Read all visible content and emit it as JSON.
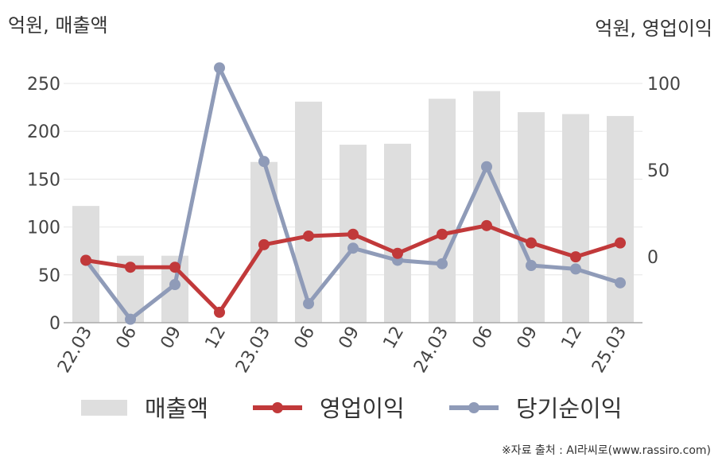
{
  "chart_data": {
    "type": "bar+line",
    "left_unit_label": "억원, 매출액",
    "right_unit_label": "억원, 영업이익",
    "categories": [
      "22.03",
      "06",
      "09",
      "12",
      "23.03",
      "06",
      "09",
      "12",
      "24.03",
      "06",
      "09",
      "12",
      "25.03"
    ],
    "left_axis": {
      "ticks": [
        "250",
        "200",
        "150",
        "100",
        "50",
        "0"
      ],
      "ylim": [
        0,
        250
      ]
    },
    "right_axis": {
      "ticks": [
        "100",
        "50",
        "0"
      ],
      "ylim": [
        -38,
        100
      ]
    },
    "series": [
      {
        "name": "매출액",
        "type": "bar",
        "axis": "left",
        "color": "#dedede",
        "values": [
          122,
          70,
          70,
          null,
          168,
          231,
          186,
          187,
          234,
          242,
          220,
          218,
          216
        ]
      },
      {
        "name": "영업이익",
        "type": "line",
        "axis": "right",
        "color": "#c1393a",
        "values": [
          -2,
          -6,
          -6,
          -32,
          7,
          12,
          13,
          2,
          13,
          18,
          8,
          0,
          8
        ]
      },
      {
        "name": "당기순이익",
        "type": "line",
        "axis": "right",
        "color": "#8f9bb8",
        "values": [
          -2,
          -36,
          -16,
          109,
          55,
          -27,
          5,
          -2,
          -4,
          52,
          -5,
          -7,
          -15
        ]
      }
    ],
    "legend_position": "bottom",
    "grid": true
  },
  "source_text": "※자료 출처 : AI라씨로(www.rassiro.com)"
}
